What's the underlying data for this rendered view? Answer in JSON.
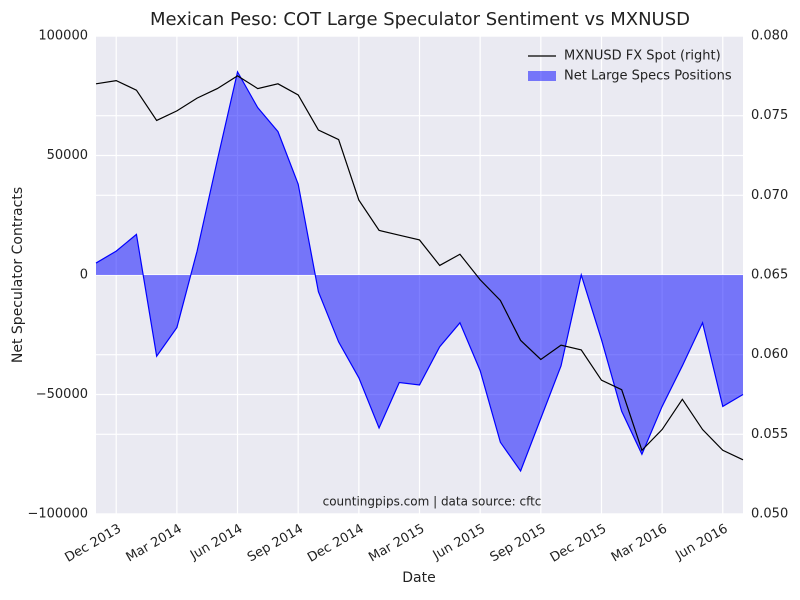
{
  "chart_data": {
    "type": "area_line",
    "title": "Mexican Peso: COT Large Speculator Sentiment vs MXNUSD",
    "x_label": "Date",
    "y_label": "Net Speculator Contracts",
    "annotation": "countingpips.com | data source: cftc",
    "x": [
      "2013-11",
      "2013-12",
      "2014-01",
      "2014-02",
      "2014-03",
      "2014-04",
      "2014-05",
      "2014-06",
      "2014-07",
      "2014-08",
      "2014-09",
      "2014-10",
      "2014-11",
      "2014-12",
      "2015-01",
      "2015-02",
      "2015-03",
      "2015-04",
      "2015-05",
      "2015-06",
      "2015-07",
      "2015-08",
      "2015-09",
      "2015-10",
      "2015-11",
      "2015-12",
      "2016-01",
      "2016-02",
      "2016-03",
      "2016-04",
      "2016-05",
      "2016-06",
      "2016-07"
    ],
    "xlim": [
      "2013-11",
      "2016-07"
    ],
    "xticks": [
      {
        "value": "2013-12",
        "label": "Dec 2013"
      },
      {
        "value": "2014-03",
        "label": "Mar 2014"
      },
      {
        "value": "2014-06",
        "label": "Jun 2014"
      },
      {
        "value": "2014-09",
        "label": "Sep 2014"
      },
      {
        "value": "2014-12",
        "label": "Dec 2014"
      },
      {
        "value": "2015-03",
        "label": "Mar 2015"
      },
      {
        "value": "2015-06",
        "label": "Jun 2015"
      },
      {
        "value": "2015-09",
        "label": "Sep 2015"
      },
      {
        "value": "2015-12",
        "label": "Dec 2015"
      },
      {
        "value": "2016-03",
        "label": "Mar 2016"
      },
      {
        "value": "2016-06",
        "label": "Jun 2016"
      }
    ],
    "ylim": [
      -100000,
      100000
    ],
    "yticks": [
      {
        "value": -100000,
        "label": "−100000"
      },
      {
        "value": -50000,
        "label": "−50000"
      },
      0,
      50000,
      100000
    ],
    "y2lim": [
      0.05,
      0.08
    ],
    "y2ticks": [
      {
        "value": 0.05,
        "label": "0.050"
      },
      {
        "value": 0.055,
        "label": "0.055"
      },
      {
        "value": 0.06,
        "label": "0.060"
      },
      {
        "value": 0.065,
        "label": "0.065"
      },
      {
        "value": 0.07,
        "label": "0.070"
      },
      {
        "value": 0.075,
        "label": "0.075"
      },
      {
        "value": 0.08,
        "label": "0.080"
      }
    ],
    "grid": true,
    "legend": "upper right",
    "series": [
      {
        "name": "MXNUSD FX Spot (right)",
        "color": "#000000",
        "axis": "y2",
        "values": [
          0.077,
          0.0772,
          0.0766,
          0.0747,
          0.0753,
          0.0761,
          0.0767,
          0.0775,
          0.0767,
          0.077,
          0.0763,
          0.0741,
          0.0735,
          0.0697,
          0.0678,
          0.0675,
          0.0672,
          0.0656,
          0.0663,
          0.0647,
          0.0634,
          0.0609,
          0.0597,
          0.0606,
          0.0603,
          0.0584,
          0.0578,
          0.054,
          0.0553,
          0.0572,
          0.0553,
          0.054,
          0.0534
        ]
      },
      {
        "name": "Net Large Specs Positions",
        "color": "#0000ff",
        "values": [
          5000,
          10000,
          17000,
          -34000,
          -22000,
          10000,
          48000,
          85000,
          70000,
          60000,
          38000,
          -7000,
          -28000,
          -43000,
          -64000,
          -45000,
          -46000,
          -30000,
          -20000,
          -40000,
          -70000,
          -82000,
          -60000,
          -38000,
          0,
          -27000,
          -57000,
          -75000,
          -55000,
          -38000,
          -20000,
          -55000,
          -50000
        ]
      }
    ]
  }
}
